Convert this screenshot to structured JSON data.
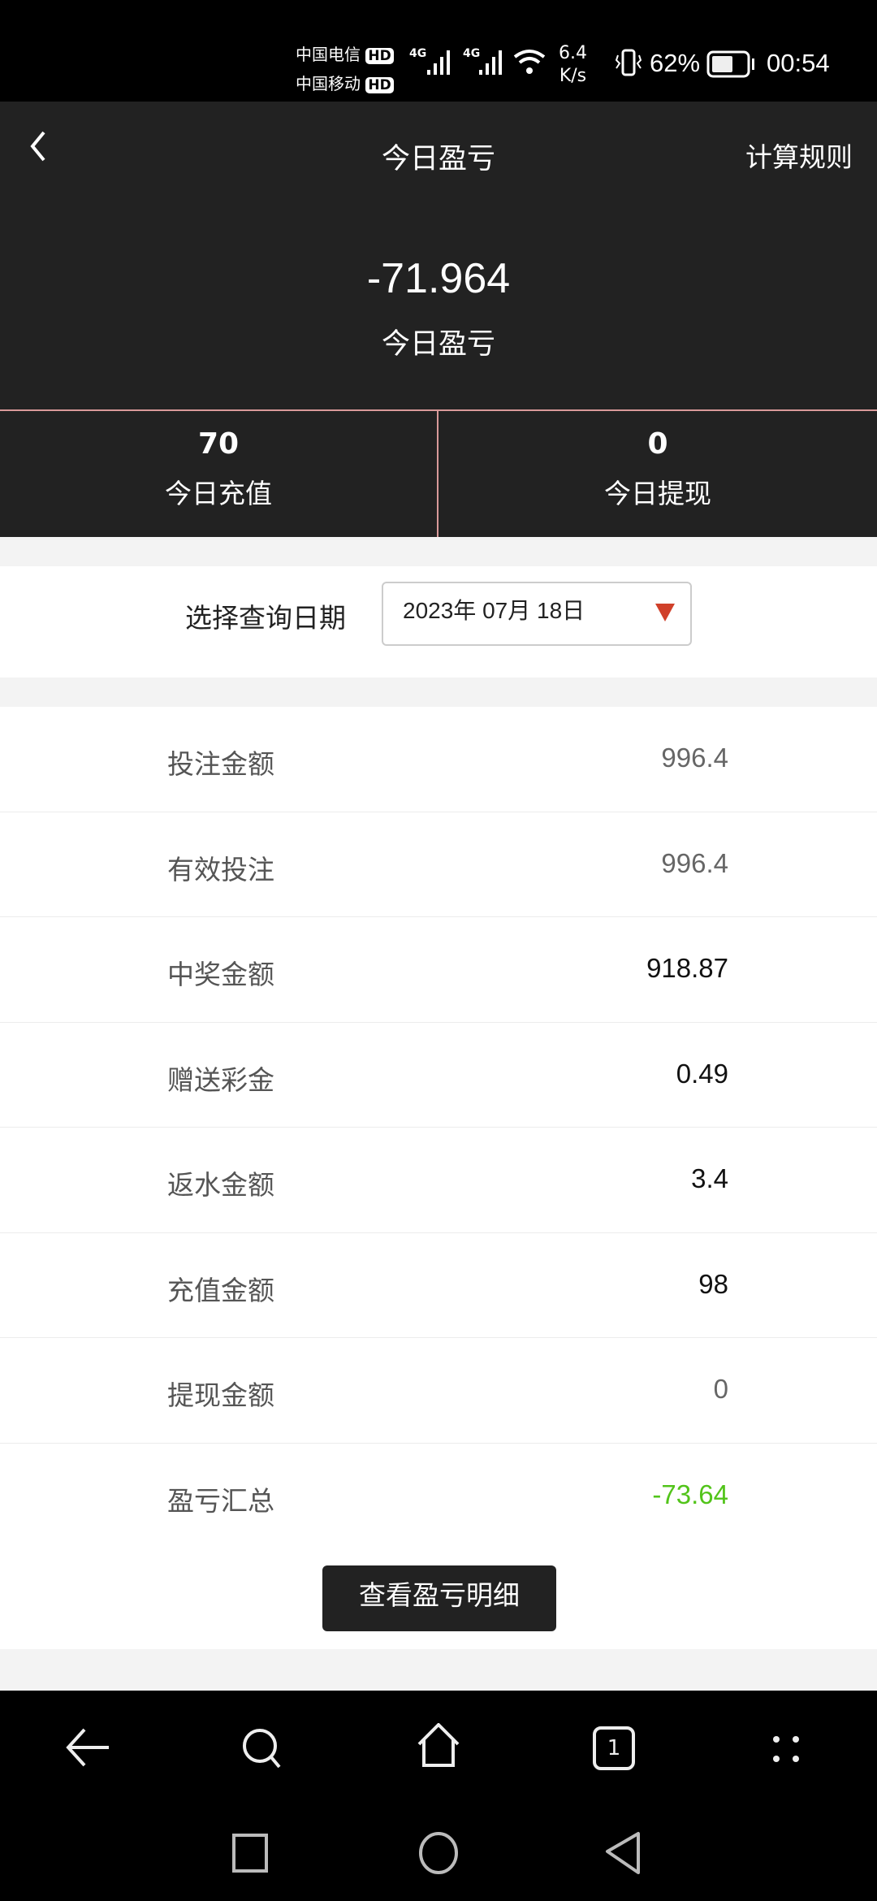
{
  "status_bar": {
    "carrier1": "中国电信",
    "carrier2": "中国移动",
    "hd": "HD",
    "net1": "4G",
    "net2": "4G",
    "speed_value": "6.4",
    "speed_unit": "K/s",
    "battery": "62%",
    "battery_level": 0.62,
    "time": "00:54"
  },
  "header": {
    "title": "今日盈亏",
    "rules": "计算规则",
    "amount": "-71.964",
    "amount_label": "今日盈亏"
  },
  "stats": [
    {
      "value": "70",
      "label": "今日充值"
    },
    {
      "value": "0",
      "label": "今日提现"
    }
  ],
  "date_query": {
    "label": "选择查询日期",
    "value": "2023年 07月 18日"
  },
  "rows": [
    {
      "label": "投注金额",
      "value": "996.4",
      "color": "#666666"
    },
    {
      "label": "有效投注",
      "value": "996.4",
      "color": "#666666"
    },
    {
      "label": "中奖金额",
      "value": "918.87",
      "color": "#111111"
    },
    {
      "label": "赠送彩金",
      "value": "0.49",
      "color": "#111111"
    },
    {
      "label": "返水金额",
      "value": "3.4",
      "color": "#111111"
    },
    {
      "label": "充值金额",
      "value": "98",
      "color": "#111111"
    },
    {
      "label": "提现金额",
      "value": "0",
      "color": "#666666"
    },
    {
      "label": "盈亏汇总",
      "value": "-73.64",
      "color": "#52c41a"
    }
  ],
  "detail_button": "查看盈亏明细",
  "browser_nav": {
    "tab_count": "1"
  },
  "colors": {
    "header_bg": "#222222",
    "accent_red": "#d0402a",
    "profit_green": "#52c41a"
  }
}
